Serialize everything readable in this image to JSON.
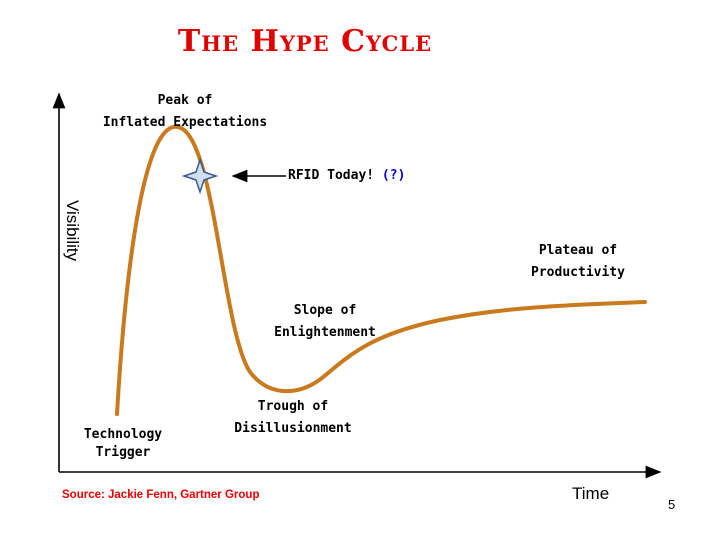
{
  "title": "The Hype Cycle",
  "labels": {
    "peak_line1": "Peak of",
    "peak_line2": "Inflated Expectations",
    "rfid_main": "RFID Today!",
    "rfid_question": "(?)",
    "plateau_line1": "Plateau of",
    "plateau_line2": "Productivity",
    "slope_line1": "Slope of",
    "slope_line2": "Enlightenment",
    "trough_line1": "Trough of",
    "trough_line2": "Disillusionment",
    "trigger_line1": "Technology",
    "trigger_line2": "Trigger"
  },
  "axes": {
    "y_label": "Visibility",
    "x_label": "Time"
  },
  "source": "Source: Jackie Fenn, Gartner Group",
  "page_number": "5",
  "colors": {
    "title": "#e00000",
    "curve": "#c97a1e",
    "source": "#ee0000",
    "question_mark": "#0000cc",
    "star_fill": "#cfe0f2",
    "star_stroke": "#3a5a8a"
  }
}
